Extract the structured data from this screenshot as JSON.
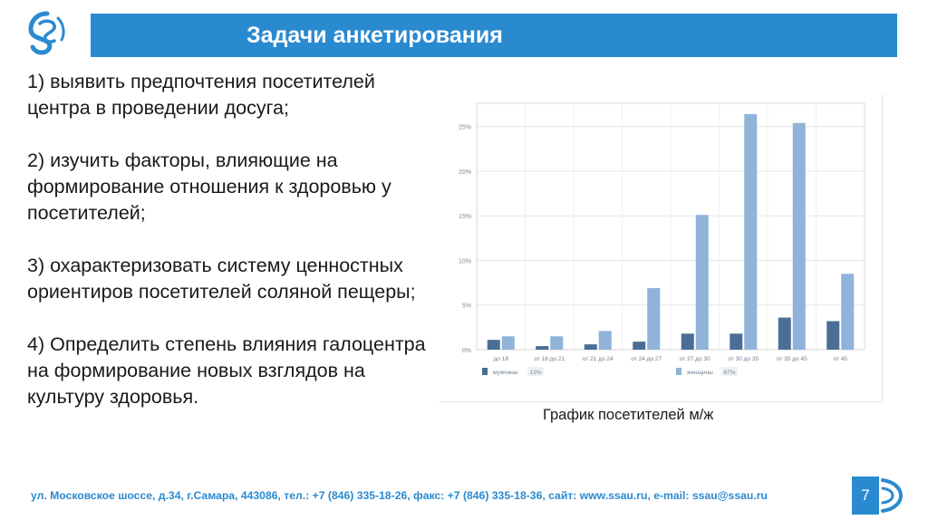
{
  "slide": {
    "title": "Задачи анкетирования",
    "tasks": [
      "1) выявить предпочтения посетителей центра в проведении досуга;",
      "2) изучить факторы, влияющие на формирование отношения к здоровью у посетителей;",
      "3) охарактеризовать систему ценностных ориентиров посетителей соляной пещеры;",
      "4) Определить степень влияния галоцентра на формирование новых взглядов на культуру здоровья."
    ],
    "caption": "График посетителей м/ж",
    "footer": "ул. Московское шоссе, д.34, г.Самара, 443086, тел.: +7 (846) 335-18-26, факс: +7 (846) 335-18-36, сайт: www.ssau.ru, e-mail: ssau@ssau.ru",
    "page_number": "7"
  },
  "colors": {
    "brand": "#2a8ad0",
    "men": "#4a6f96",
    "women": "#8fb3d9"
  },
  "chart_data": {
    "type": "bar",
    "categories": [
      "до 18",
      "от 18 до 21",
      "от 21 до 24",
      "от 24 до 27",
      "от 27 до 30",
      "от 30 до 35",
      "от 35 до 45",
      "от 45"
    ],
    "series": [
      {
        "name": "мужчины",
        "share": "13%",
        "values": [
          1.1,
          0.4,
          0.6,
          0.9,
          1.8,
          1.8,
          3.6,
          3.2
        ]
      },
      {
        "name": "женщины",
        "share": "87%",
        "values": [
          1.5,
          1.5,
          2.1,
          6.9,
          15.1,
          26.4,
          25.4,
          8.5
        ]
      }
    ],
    "yticks": [
      "0%",
      "5%",
      "10%",
      "15%",
      "20%",
      "25%"
    ],
    "ylim": [
      0,
      27
    ],
    "grid": true,
    "legend_position": "bottom-left"
  }
}
